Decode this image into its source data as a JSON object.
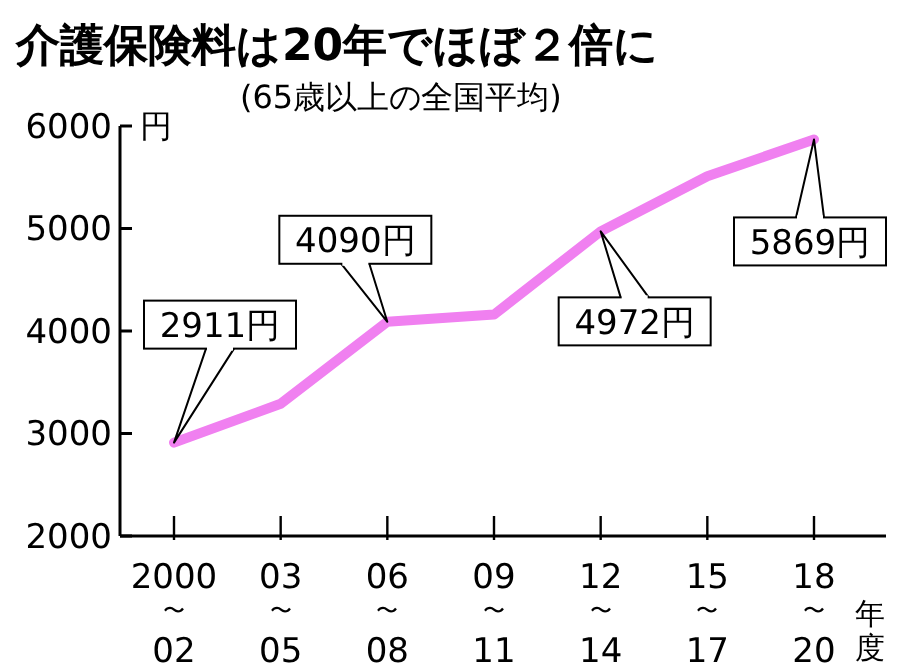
{
  "chart_data": {
    "type": "line",
    "title": "介護保険料は20年でほぼ２倍に",
    "subtitle": "(65歳以上の全国平均)",
    "ylabel": "円",
    "xlabel": "年度",
    "categories": [
      "2000〜02",
      "03〜05",
      "06〜08",
      "09〜11",
      "12〜14",
      "15〜17",
      "18〜20"
    ],
    "series": [
      {
        "color": "#f080f0",
        "values": [
          2911,
          3290,
          4090,
          4160,
          4972,
          5510,
          5869
        ]
      }
    ],
    "ylim": [
      2000,
      6000
    ],
    "yticks": [
      2000,
      3000,
      4000,
      5000,
      6000
    ],
    "marker": "none",
    "line_style": "solid",
    "annotations": [
      {
        "text": "2911円",
        "x": "2000〜02",
        "y": 2911
      },
      {
        "text": "4090円",
        "x": "06〜08",
        "y": 4090
      },
      {
        "text": "4972円",
        "x": "12〜14",
        "y": 4972
      },
      {
        "text": "5869円",
        "x": "18〜20",
        "y": 5869
      }
    ]
  }
}
